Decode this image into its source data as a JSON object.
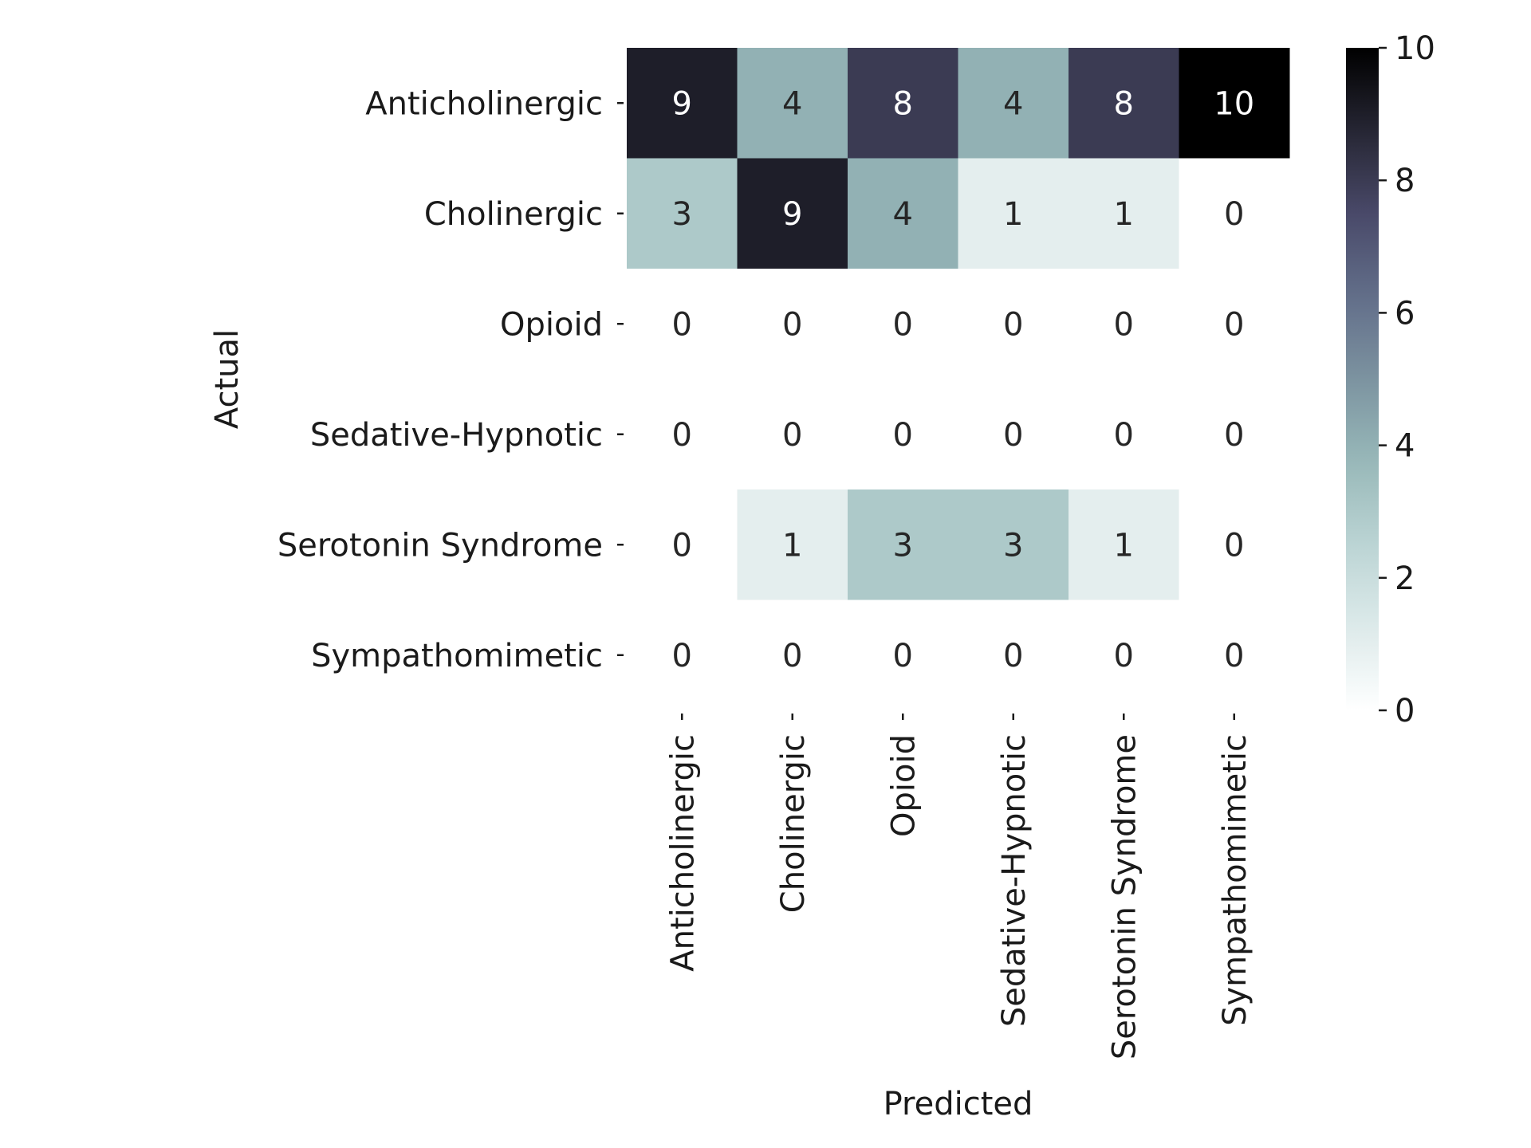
{
  "chart_data": {
    "type": "heatmap",
    "title": "",
    "xlabel": "Predicted",
    "ylabel": "Actual",
    "x_categories": [
      "Anticholinergic",
      "Cholinergic",
      "Opioid",
      "Sedative-Hypnotic",
      "Serotonin Syndrome",
      "Sympathomimetic"
    ],
    "y_categories": [
      "Anticholinergic",
      "Cholinergic",
      "Opioid",
      "Sedative-Hypnotic",
      "Serotonin Syndrome",
      "Sympathomimetic"
    ],
    "values": [
      [
        9,
        4,
        8,
        4,
        8,
        10
      ],
      [
        3,
        9,
        4,
        1,
        1,
        0
      ],
      [
        0,
        0,
        0,
        0,
        0,
        0
      ],
      [
        0,
        0,
        0,
        0,
        0,
        0
      ],
      [
        0,
        1,
        3,
        3,
        1,
        0
      ],
      [
        0,
        0,
        0,
        0,
        0,
        0
      ]
    ],
    "colorbar": {
      "range": [
        0,
        10
      ],
      "ticks": [
        "0",
        "2",
        "4",
        "6",
        "8",
        "10"
      ],
      "colormap": "bone_r"
    },
    "annotated": true,
    "grid": false
  }
}
